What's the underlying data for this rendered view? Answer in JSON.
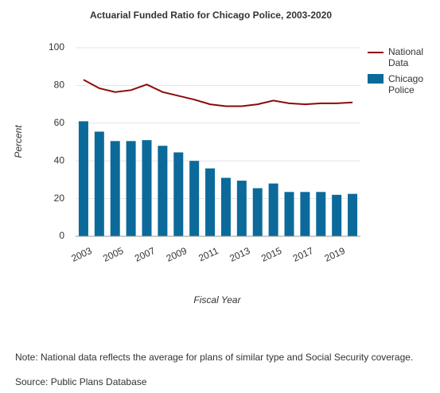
{
  "chart_data": {
    "type": "bar_line",
    "title": "Actuarial Funded Ratio for Chicago Police, 2003-2020",
    "x_label": "Fiscal Year",
    "y_label": "Percent",
    "categories": [
      "2003",
      null,
      "2005",
      null,
      "2007",
      null,
      "2009",
      null,
      "2011",
      null,
      "2013",
      null,
      "2015",
      null,
      "2017",
      null,
      "2019",
      null
    ],
    "series": [
      {
        "name": "National Data",
        "type": "line",
        "color": "#8b0a0a",
        "values": [
          83,
          78.5,
          76.5,
          77.5,
          80.5,
          76.5,
          74.5,
          72.5,
          70,
          69,
          69,
          70,
          72,
          70.5,
          70,
          70.5,
          70.5,
          71
        ]
      },
      {
        "name": "Chicago Police",
        "type": "bar",
        "color": "#0b6a9a",
        "values": [
          61,
          55.5,
          50.5,
          50.5,
          51,
          48,
          44.5,
          40,
          36,
          31,
          29.5,
          25.5,
          28,
          23.5,
          23.5,
          23.5,
          22,
          22.5
        ]
      }
    ],
    "ylim": [
      0,
      100
    ],
    "yticks": [
      0,
      20,
      40,
      60,
      80,
      100
    ],
    "grid": true,
    "legend": "right",
    "note": "Note: National data reflects the average for plans of similar type and Social Security coverage.",
    "source": "Source: Public Plans Database"
  }
}
